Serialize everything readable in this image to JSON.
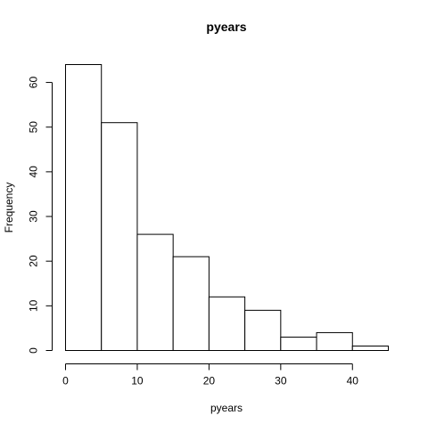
{
  "chart_data": {
    "type": "bar",
    "title": "pyears",
    "xlabel": "pyears",
    "ylabel": "Frequency",
    "bins": [
      {
        "start": 0,
        "end": 5,
        "count": 64
      },
      {
        "start": 5,
        "end": 10,
        "count": 51
      },
      {
        "start": 10,
        "end": 15,
        "count": 26
      },
      {
        "start": 15,
        "end": 20,
        "count": 21
      },
      {
        "start": 20,
        "end": 25,
        "count": 12
      },
      {
        "start": 25,
        "end": 30,
        "count": 9
      },
      {
        "start": 30,
        "end": 35,
        "count": 3
      },
      {
        "start": 35,
        "end": 40,
        "count": 4
      },
      {
        "start": 40,
        "end": 45,
        "count": 1
      }
    ],
    "xlim": [
      0,
      45
    ],
    "ylim": [
      0,
      64
    ],
    "x_ticks": [
      0,
      10,
      20,
      30,
      40
    ],
    "y_ticks": [
      0,
      10,
      20,
      30,
      40,
      50,
      60
    ],
    "grid": false,
    "colors": {
      "bar_fill": "#ffffff",
      "bar_stroke": "#000000",
      "axis": "#000000"
    }
  }
}
